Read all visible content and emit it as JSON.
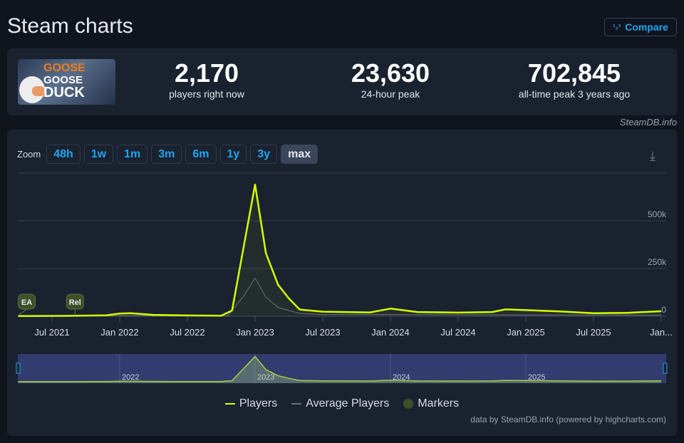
{
  "header": {
    "title": "Steam charts",
    "compare_label": "Compare",
    "compare_icon": "1 2 3"
  },
  "game": {
    "cover_text": [
      "GOOSE",
      "GOOSE",
      "DUCK"
    ]
  },
  "stats": [
    {
      "value": "2,170",
      "label": "players right now"
    },
    {
      "value": "23,630",
      "label": "24-hour peak"
    },
    {
      "value": "702,845",
      "label": "all-time peak 3 years ago"
    }
  ],
  "credit": "SteamDB.info",
  "zoom": {
    "label": "Zoom",
    "buttons": [
      "48h",
      "1w",
      "1m",
      "3m",
      "6m",
      "1y",
      "3y",
      "max"
    ],
    "active": "max"
  },
  "footer": "data by SteamDB.info (powered by highcharts.com)",
  "colors": {
    "players": "#d4ff00",
    "average": "#6d7178",
    "markers": "#3f5028",
    "navigator": "#323c6e"
  },
  "chart_data": {
    "type": "line",
    "title": "",
    "x_ticks": [
      "Jul 2021",
      "Jan 2022",
      "Jul 2022",
      "Jan 2023",
      "Jul 2023",
      "Jan 2024",
      "Jul 2024",
      "Jan 2025",
      "Jul 2025",
      "Jan..."
    ],
    "x_tick_values": [
      2021.5,
      2022,
      2022.5,
      2023,
      2023.5,
      2024,
      2024.5,
      2025,
      2025.5,
      2026
    ],
    "y_ticks": [
      "0",
      "250k",
      "500k"
    ],
    "y_tick_values": [
      0,
      250000,
      500000
    ],
    "ylim": [
      0,
      750000
    ],
    "xlim": [
      2021.25,
      2026
    ],
    "navigator_labels": [
      "2022",
      "2023",
      "2024",
      "2025"
    ],
    "legend": [
      "Players",
      "Average Players",
      "Markers"
    ],
    "markers": [
      {
        "label": "EA",
        "x": 2021.25
      },
      {
        "label": "Rel",
        "x": 2021.67
      }
    ],
    "series": [
      {
        "name": "Players",
        "x": [
          2021.25,
          2021.6,
          2021.9,
          2022.0,
          2022.08,
          2022.25,
          2022.5,
          2022.75,
          2022.83,
          2022.92,
          2023.0,
          2023.08,
          2023.17,
          2023.25,
          2023.33,
          2023.5,
          2023.75,
          2023.85,
          2024.0,
          2024.2,
          2024.5,
          2024.75,
          2024.85,
          2025.0,
          2025.25,
          2025.5,
          2025.75,
          2026.0
        ],
        "values": [
          1000,
          2000,
          5000,
          14000,
          16000,
          7000,
          4000,
          3000,
          30000,
          380000,
          690000,
          330000,
          165000,
          93000,
          35000,
          24000,
          21000,
          20000,
          40000,
          22000,
          19000,
          22000,
          36000,
          32000,
          25000,
          16000,
          18000,
          26000
        ]
      },
      {
        "name": "Average Players",
        "x": [
          2021.25,
          2022.0,
          2022.5,
          2022.8,
          2022.92,
          2023.0,
          2023.08,
          2023.17,
          2023.33,
          2023.5,
          2024.0,
          2025.0,
          2026.0
        ],
        "values": [
          500,
          3000,
          2000,
          3000,
          110000,
          200000,
          100000,
          45000,
          15000,
          9000,
          9000,
          7000,
          6000
        ]
      }
    ]
  }
}
